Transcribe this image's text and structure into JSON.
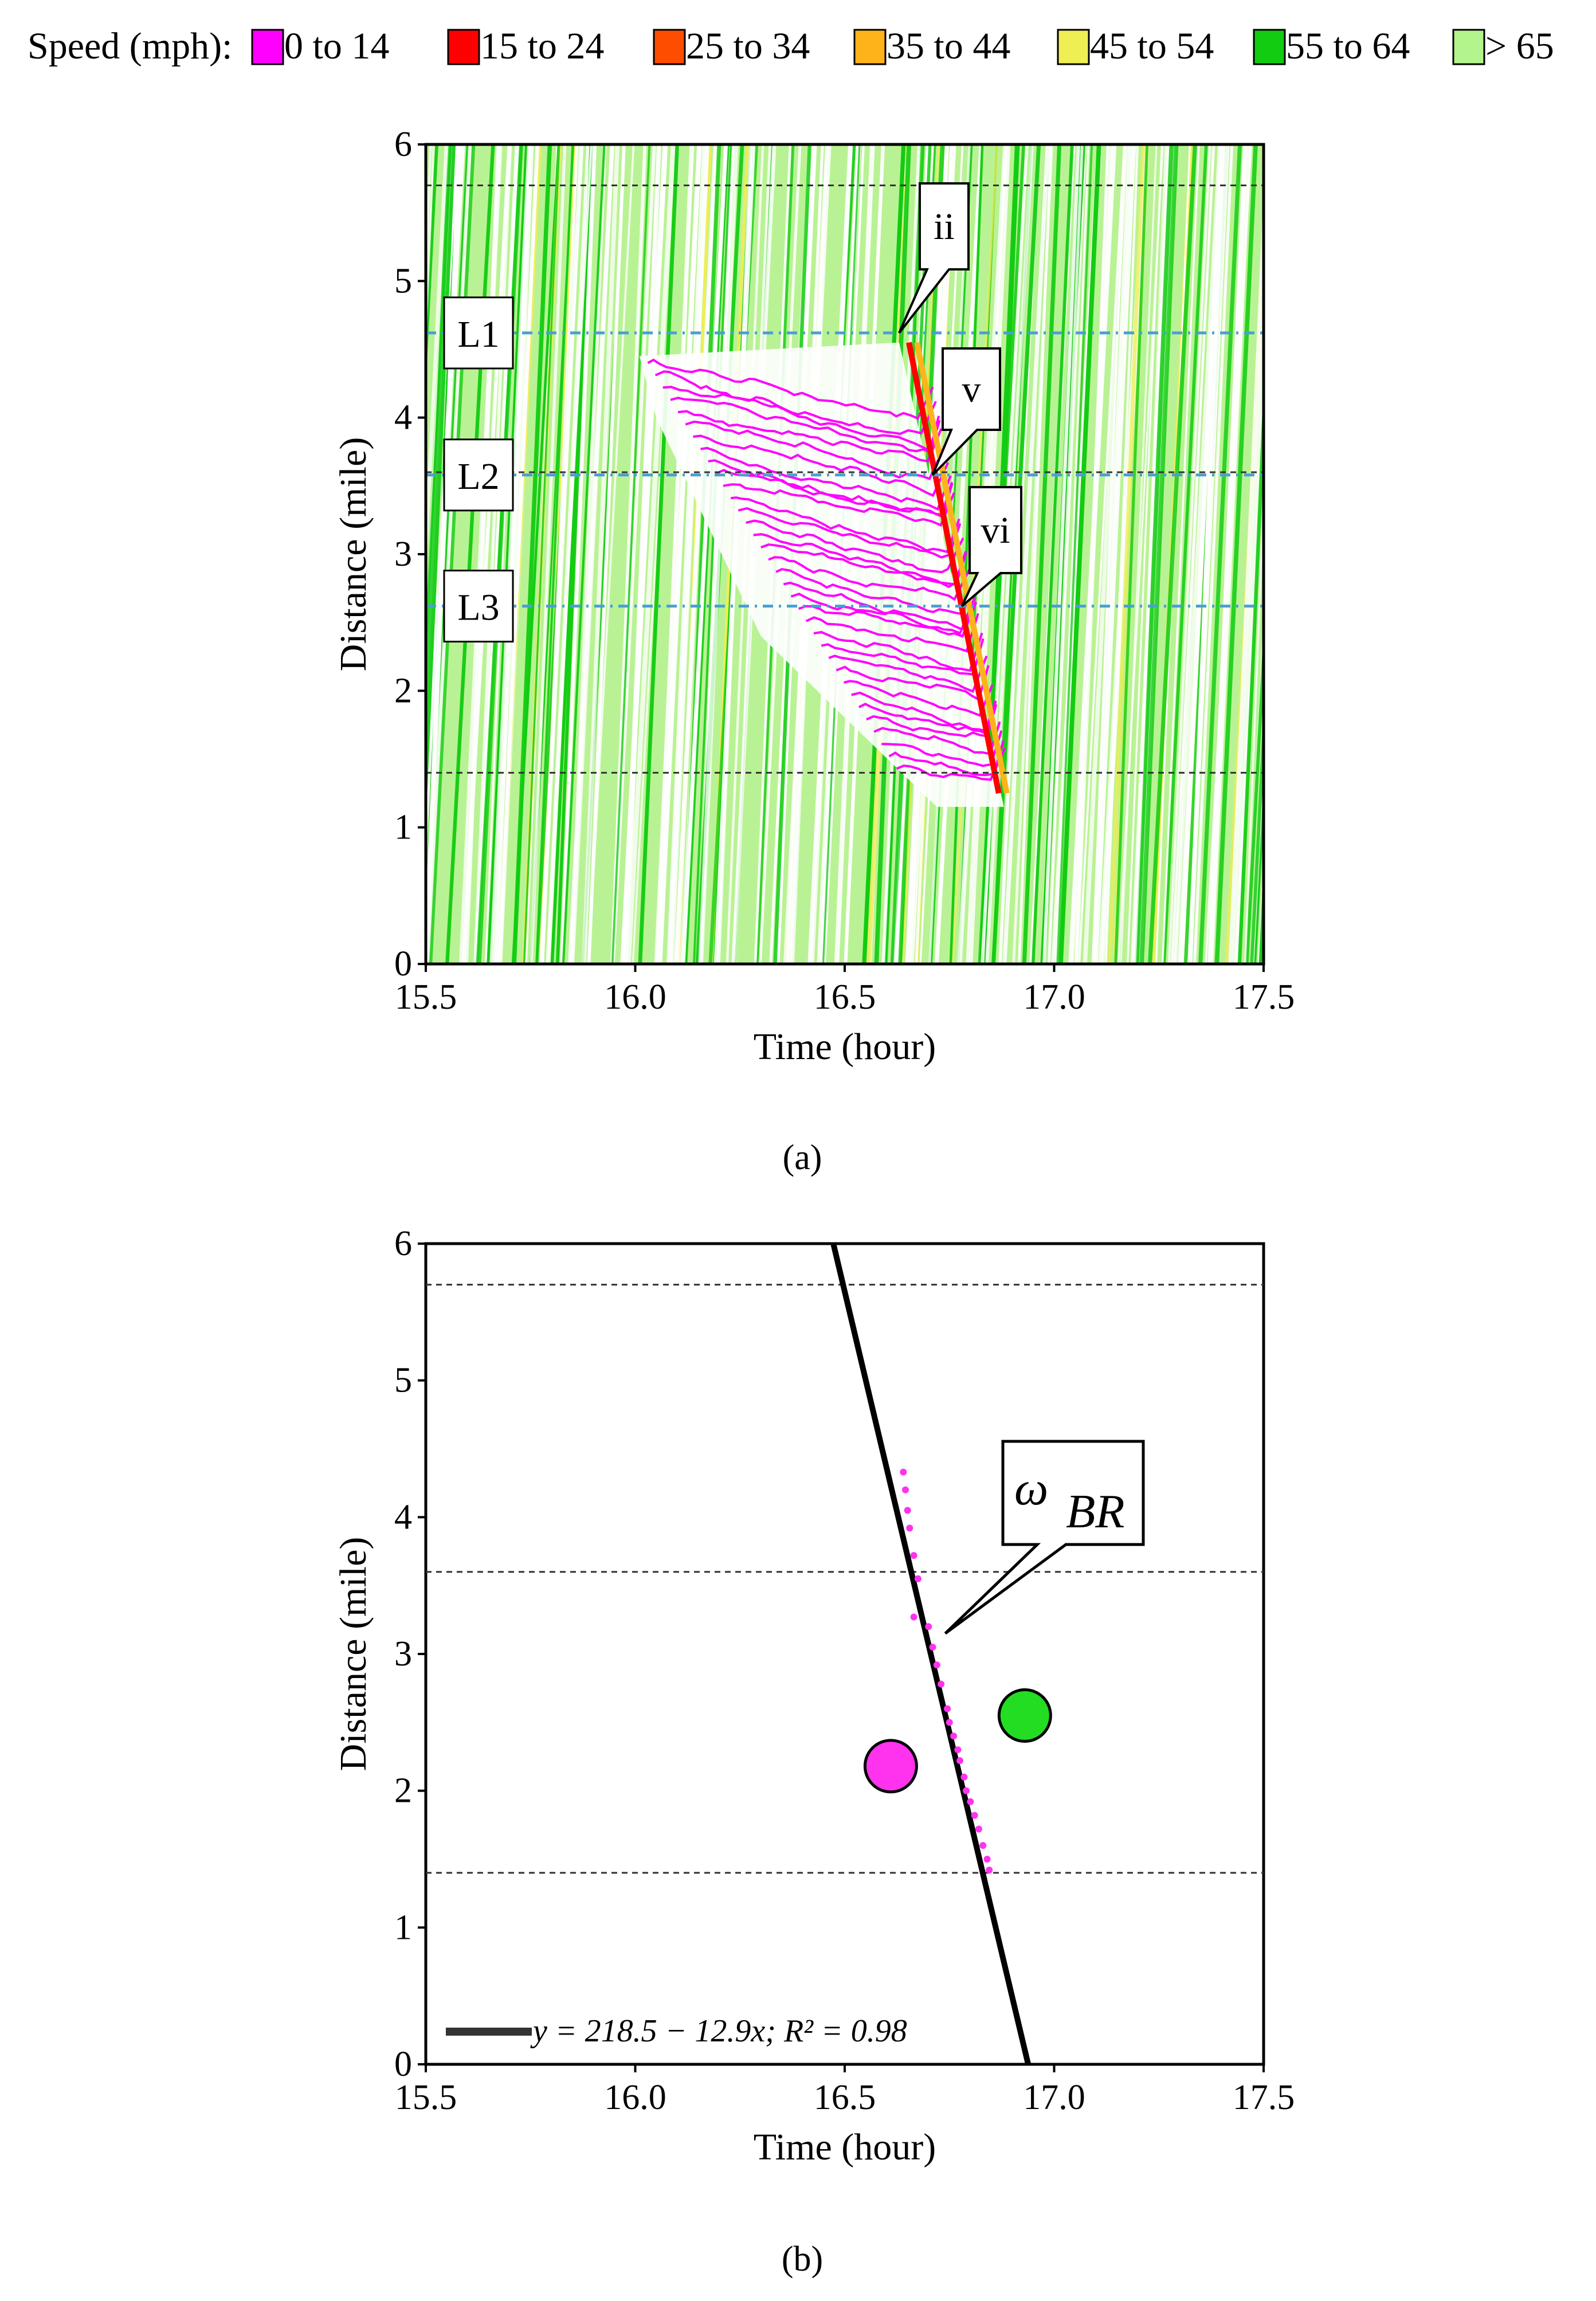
{
  "legend": {
    "title": "Speed (mph):",
    "items": [
      {
        "label": "0 to 14",
        "color": "#ff00ff"
      },
      {
        "label": "15 to 24",
        "color": "#ff0000"
      },
      {
        "label": "25 to 34",
        "color": "#ff4d00"
      },
      {
        "label": "35 to 44",
        "color": "#ffb31a"
      },
      {
        "label": "45 to 54",
        "color": "#eeee55"
      },
      {
        "label": "55 to 64",
        "color": "#11cc11"
      },
      {
        "label": "> 65",
        "color": "#b3f58c"
      }
    ]
  },
  "chart_data": [
    {
      "type": "scatter",
      "caption": "(a)",
      "xlabel": "Time (hour)",
      "ylabel": "Distance (mile)",
      "xlim": [
        15.5,
        17.5
      ],
      "ylim": [
        0,
        6
      ],
      "xticks": [
        "15.5",
        "16.0",
        "16.5",
        "17.0",
        "17.5"
      ],
      "yticks": [
        "0",
        "1",
        "2",
        "3",
        "4",
        "5",
        "6"
      ],
      "reference_lines": [
        {
          "y": 5.7,
          "style": "dashed",
          "color": "#333333"
        },
        {
          "y": 3.6,
          "style": "dashed",
          "color": "#333333"
        },
        {
          "y": 1.4,
          "style": "dashed",
          "color": "#333333"
        },
        {
          "y": 4.62,
          "style": "dash-dot",
          "color": "#4a9fd4"
        },
        {
          "y": 3.58,
          "style": "dash-dot",
          "color": "#4a9fd4"
        },
        {
          "y": 2.62,
          "style": "dash-dot",
          "color": "#4a9fd4"
        }
      ],
      "line_labels": [
        {
          "text": "L1",
          "y": 4.62
        },
        {
          "text": "L2",
          "y": 3.58
        },
        {
          "text": "L3",
          "y": 2.62
        }
      ],
      "callouts": [
        {
          "text": "ii",
          "x": 16.63,
          "y": 4.62
        },
        {
          "text": "v",
          "x": 16.71,
          "y": 3.58
        },
        {
          "text": "vi",
          "x": 16.78,
          "y": 2.62
        }
      ],
      "congestion_region": [
        [
          16.01,
          4.45
        ],
        [
          16.63,
          4.55
        ],
        [
          16.88,
          1.15
        ],
        [
          16.72,
          1.15
        ],
        [
          16.3,
          2.4
        ],
        [
          16.05,
          4.0
        ]
      ],
      "speed_encoding": "trajectory color by speed band (see legend)"
    },
    {
      "type": "scatter",
      "caption": "(b)",
      "xlabel": "Time (hour)",
      "ylabel": "Distance (mile)",
      "xlim": [
        15.5,
        17.5
      ],
      "ylim": [
        0,
        6
      ],
      "xticks": [
        "15.5",
        "16.0",
        "16.5",
        "17.0",
        "17.5"
      ],
      "yticks": [
        "0",
        "1",
        "2",
        "3",
        "4",
        "5",
        "6"
      ],
      "reference_lines": [
        {
          "y": 5.7,
          "style": "dashed"
        },
        {
          "y": 3.6,
          "style": "dashed"
        },
        {
          "y": 1.4,
          "style": "dashed"
        }
      ],
      "fit": {
        "intercept": 218.5,
        "slope": -12.9,
        "r2": 0.98,
        "label": "y = 218.5 − 12.9x; R² = 0.98"
      },
      "callout": {
        "text": "ω",
        "subscript": "BR",
        "x": 16.74,
        "y": 3.15
      },
      "points": [
        {
          "x": 16.64,
          "y": 4.33
        },
        {
          "x": 16.645,
          "y": 4.2
        },
        {
          "x": 16.65,
          "y": 4.05
        },
        {
          "x": 16.655,
          "y": 3.92
        },
        {
          "x": 16.665,
          "y": 3.72
        },
        {
          "x": 16.675,
          "y": 3.55
        },
        {
          "x": 16.665,
          "y": 3.27
        },
        {
          "x": 16.7,
          "y": 3.2
        },
        {
          "x": 16.71,
          "y": 3.05
        },
        {
          "x": 16.72,
          "y": 2.92
        },
        {
          "x": 16.73,
          "y": 2.78
        },
        {
          "x": 16.745,
          "y": 2.6
        },
        {
          "x": 16.75,
          "y": 2.5
        },
        {
          "x": 16.76,
          "y": 2.4
        },
        {
          "x": 16.77,
          "y": 2.3
        },
        {
          "x": 16.775,
          "y": 2.22
        },
        {
          "x": 16.785,
          "y": 2.1
        },
        {
          "x": 16.79,
          "y": 2.0
        },
        {
          "x": 16.8,
          "y": 1.92
        },
        {
          "x": 16.81,
          "y": 1.82
        },
        {
          "x": 16.82,
          "y": 1.72
        },
        {
          "x": 16.83,
          "y": 1.6
        },
        {
          "x": 16.84,
          "y": 1.5
        },
        {
          "x": 16.845,
          "y": 1.42
        }
      ],
      "markers": [
        {
          "x": 16.61,
          "y": 2.18,
          "color": "#ff33ee"
        },
        {
          "x": 16.93,
          "y": 2.55,
          "color": "#22dd22"
        }
      ]
    }
  ]
}
